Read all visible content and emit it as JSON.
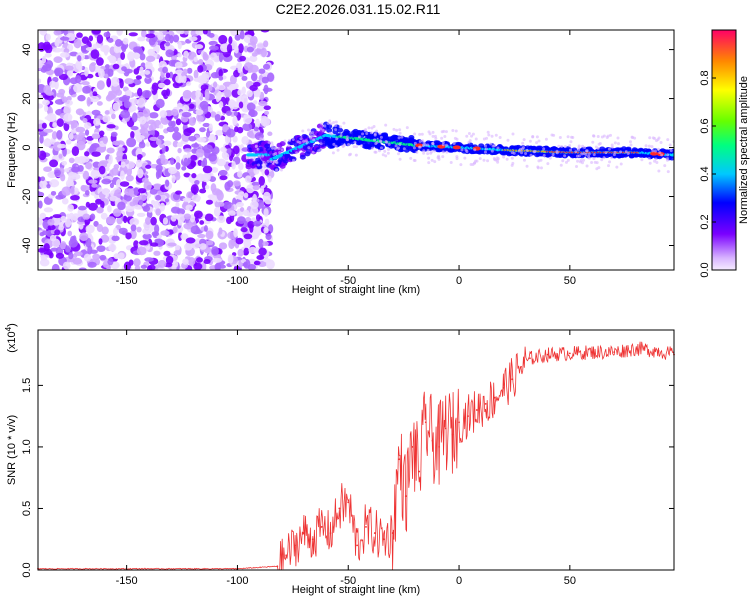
{
  "figure_title": "C2E2.2026.031.15.02.R11",
  "chart_data": [
    {
      "type": "heatmap",
      "title": "C2E2.2026.031.15.02.R11",
      "xlabel": "Height of straight line (km)",
      "ylabel": "Frequency (Hz)",
      "xlim": [
        -190,
        97
      ],
      "ylim": [
        -50,
        48
      ],
      "x_ticks": [
        -150,
        -100,
        -50,
        0,
        50
      ],
      "x_tick_labels": [
        "-150",
        "-100",
        "-50",
        "0",
        "50"
      ],
      "y_ticks": [
        -40,
        -20,
        0,
        20,
        40
      ],
      "y_tick_labels": [
        "-40",
        "-20",
        "0",
        "20",
        "40"
      ],
      "colorbar": {
        "label": "Normalized spectral amplitude",
        "range": [
          0.0,
          1.0
        ],
        "ticks": [
          0.0,
          0.2,
          0.4,
          0.6,
          0.8
        ],
        "tick_labels": [
          "0.0",
          "0.2",
          "0.4",
          "0.6",
          "0.8"
        ]
      },
      "description_points": {
        "noise_region_x": [
          -190,
          -85
        ],
        "ridge_x": [
          -85,
          -60,
          -40,
          -20,
          0,
          20,
          50,
          80,
          97
        ],
        "ridge_freq": [
          -5,
          5,
          3,
          1,
          0,
          -1,
          -2,
          -2,
          -3
        ]
      }
    },
    {
      "type": "line",
      "xlabel": "Height of straight line (km)",
      "ylabel": "SNR (10 * v/v)",
      "y_multiplier": "(x10",
      "y_multiplier_exp": "4",
      "y_multiplier_close": ")",
      "xlim": [
        -190,
        97
      ],
      "ylim": [
        0,
        1.95
      ],
      "x_ticks": [
        -150,
        -100,
        -50,
        0,
        50
      ],
      "x_tick_labels": [
        "-150",
        "-100",
        "-50",
        "0",
        "50"
      ],
      "y_ticks": [
        0,
        0.5,
        1.0,
        1.5
      ],
      "y_tick_labels": [
        "0.0",
        "0.5",
        "1.0",
        "1.5"
      ],
      "series": [
        {
          "name": "SNR",
          "color": "#ee3333",
          "x": [
            -190,
            -100,
            -82,
            -78,
            -74,
            -70,
            -66,
            -62,
            -58,
            -54,
            -50,
            -46,
            -42,
            -38,
            -34,
            -30,
            -27,
            -24,
            -21,
            -18,
            -15,
            -12,
            -9,
            -6,
            -3,
            0,
            4,
            8,
            12,
            16,
            20,
            24,
            28,
            32,
            40,
            50,
            60,
            70,
            80,
            90,
            97
          ],
          "values": [
            0.01,
            0.01,
            0.03,
            0.12,
            0.2,
            0.3,
            0.25,
            0.35,
            0.3,
            0.5,
            0.55,
            0.2,
            0.35,
            0.3,
            0.25,
            0.3,
            0.9,
            0.6,
            1.0,
            0.8,
            1.2,
            1.05,
            1.0,
            1.15,
            1.1,
            1.2,
            1.25,
            1.3,
            1.35,
            1.4,
            1.48,
            1.55,
            1.65,
            1.72,
            1.75,
            1.76,
            1.77,
            1.77,
            1.8,
            1.78,
            1.75
          ]
        }
      ]
    }
  ]
}
